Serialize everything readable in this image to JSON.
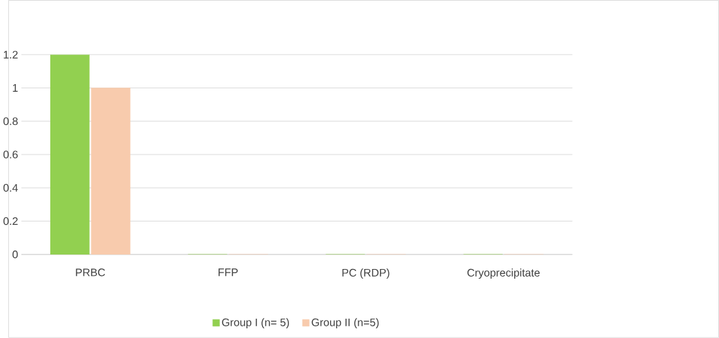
{
  "chart_data": {
    "type": "bar",
    "categories": [
      "PRBC",
      "FFP",
      "PC (RDP)",
      "Cryoprecipitate"
    ],
    "series": [
      {
        "name": "Group I (n= 5)",
        "color": "#92d050",
        "values": [
          1.2,
          0,
          0,
          0
        ]
      },
      {
        "name": "Group II (n=5)",
        "color": "#f8cbad",
        "values": [
          1,
          0,
          0,
          0
        ]
      }
    ],
    "ylim": [
      0,
      1.2
    ],
    "yticks": [
      0,
      0.2,
      0.4,
      0.6,
      0.8,
      1,
      1.2
    ],
    "grid": "y",
    "legend": "bottom"
  }
}
